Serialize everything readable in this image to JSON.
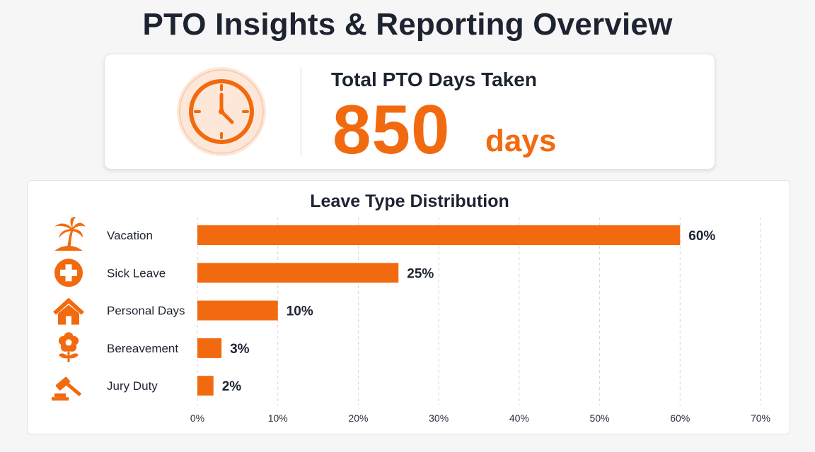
{
  "header": {
    "title": "PTO Insights & Reporting Overview"
  },
  "kpi": {
    "label": "Total PTO Days Taken",
    "value": "850",
    "unit": "days",
    "icon": "clock-icon"
  },
  "colors": {
    "accent": "#f26a0f",
    "accent_light": "#fde7d8",
    "grid": "#d6d6da",
    "text": "#1d2330"
  },
  "chart_data": {
    "type": "bar",
    "orientation": "horizontal",
    "title": "Leave Type Distribution",
    "categories": [
      "Vacation",
      "Sick Leave",
      "Personal Days",
      "Bereavement",
      "Jury Duty"
    ],
    "icons": [
      "palm-tree-icon",
      "medical-cross-icon",
      "house-icon",
      "flower-icon",
      "gavel-icon"
    ],
    "values": [
      60,
      25,
      10,
      3,
      2
    ],
    "value_labels": [
      "60%",
      "25%",
      "10%",
      "3%",
      "2%"
    ],
    "xlim": [
      0,
      70
    ],
    "xticks": [
      0,
      10,
      20,
      30,
      40,
      50,
      60,
      70
    ],
    "xtick_labels": [
      "0%",
      "10%",
      "20%",
      "30%",
      "40%",
      "50%",
      "60%",
      "70%"
    ],
    "grid": true
  }
}
